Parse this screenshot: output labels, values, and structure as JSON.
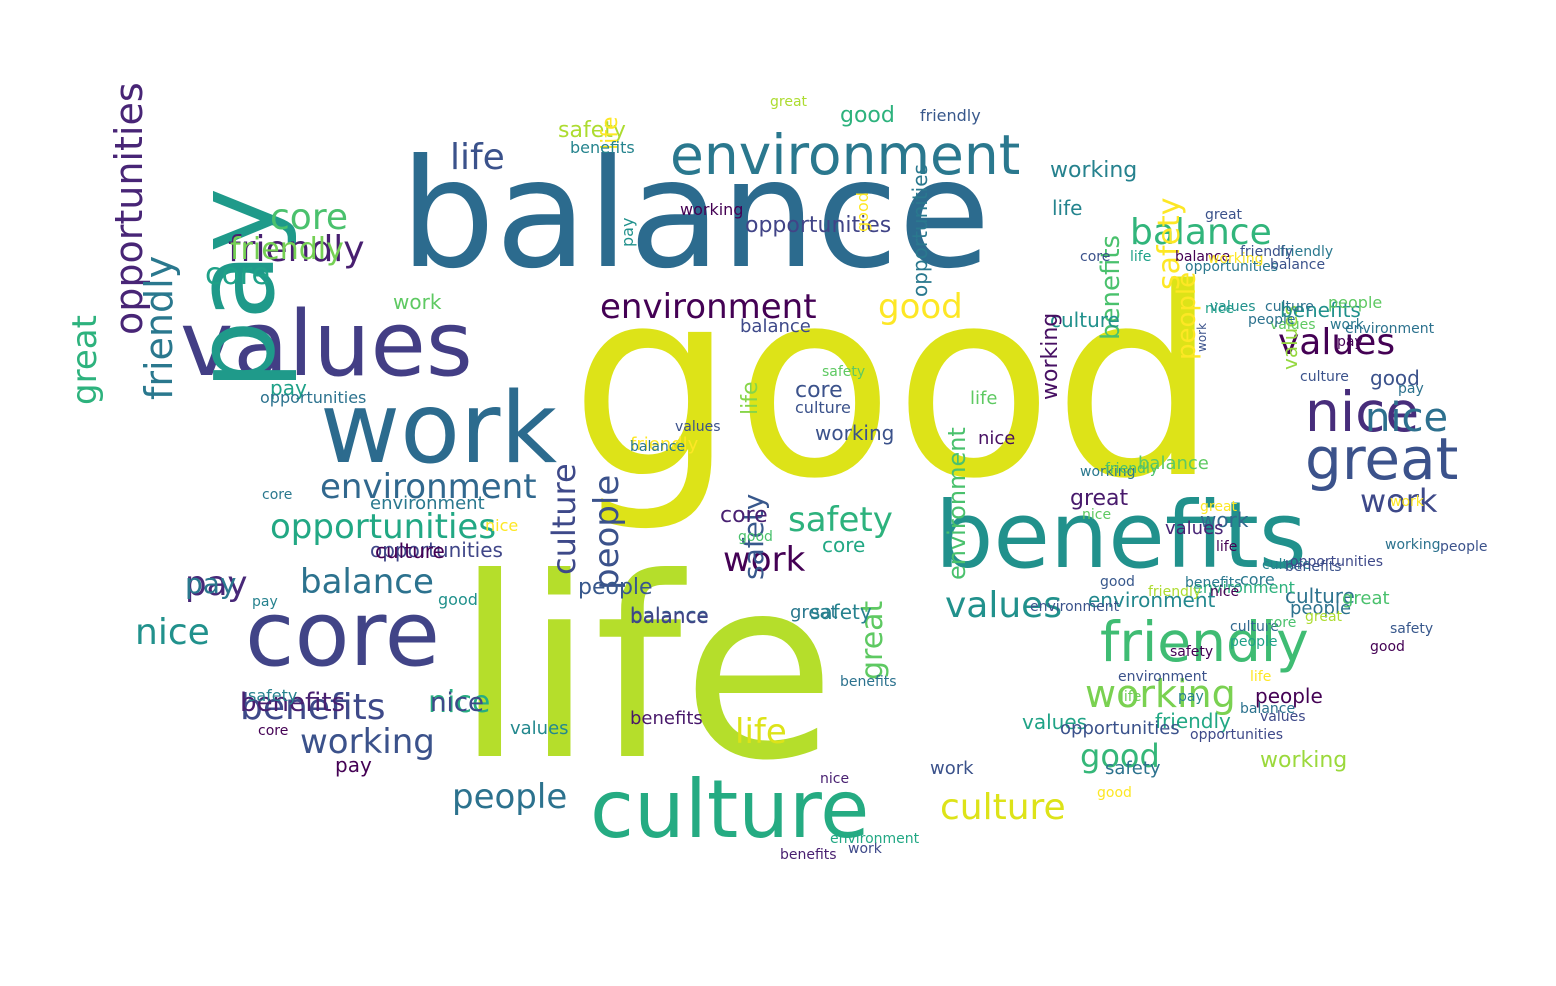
{
  "palette": [
    "#440154",
    "#3b528b",
    "#2c728e",
    "#21918c",
    "#28ae80",
    "#5ec962",
    "#addc30",
    "#dde318",
    "#fde725"
  ],
  "words": [
    {
      "text": "good",
      "weight": 1.0,
      "color": "#dde318"
    },
    {
      "text": "life",
      "weight": 0.78,
      "color": "#b5de2b"
    },
    {
      "text": "balance",
      "weight": 0.58,
      "color": "#2c6b8e"
    },
    {
      "text": "benefits",
      "weight": 0.34,
      "color": "#21918c"
    },
    {
      "text": "values",
      "weight": 0.3,
      "color": "#433e85"
    },
    {
      "text": "core",
      "weight": 0.29,
      "color": "#414487"
    },
    {
      "text": "pay",
      "weight": 0.3,
      "color": "#1f9a8a"
    },
    {
      "text": "work",
      "weight": 0.3,
      "color": "#2c6b8e"
    },
    {
      "text": "culture",
      "weight": 0.25,
      "color": "#25ab82"
    },
    {
      "text": "environment",
      "weight": 0.17,
      "color": "#2a788e"
    },
    {
      "text": "great",
      "weight": 0.17,
      "color": "#3b528b"
    },
    {
      "text": "nice",
      "weight": 0.16,
      "color": "#472d7b"
    },
    {
      "text": "friendly",
      "weight": 0.15,
      "color": "#3fbc73"
    },
    {
      "text": "opportunities",
      "weight": 0.12,
      "color": "#482576"
    },
    {
      "text": "working",
      "weight": 0.1,
      "color": "#7ad151"
    },
    {
      "text": "safety",
      "weight": 0.1,
      "color": "#2db27d"
    },
    {
      "text": "people",
      "weight": 0.1,
      "color": "#3b528b"
    },
    {
      "text": "life",
      "weight": 0.1,
      "color": "#3b528b"
    },
    {
      "text": "balance",
      "weight": 0.09,
      "color": "#31b57b"
    },
    {
      "text": "friendly",
      "weight": 0.08,
      "color": "#2a788e"
    },
    {
      "text": "values",
      "weight": 0.09,
      "color": "#440154"
    },
    {
      "text": "core",
      "weight": 0.08,
      "color": "#4ac16d"
    },
    {
      "text": "culture",
      "weight": 0.08,
      "color": "#dde318"
    },
    {
      "text": "benefits",
      "weight": 0.09,
      "color": "#3e4989"
    },
    {
      "text": "nice",
      "weight": 0.08,
      "color": "#21918c"
    },
    {
      "text": "environment",
      "weight": 0.07,
      "color": "#440154"
    },
    {
      "text": "opportunities",
      "weight": 0.07,
      "color": "#22a884"
    },
    {
      "text": "working",
      "weight": 0.08,
      "color": "#3b528b"
    },
    {
      "text": "good",
      "weight": 0.07,
      "color": "#fde725"
    },
    {
      "text": "work",
      "weight": 0.08,
      "color": "#440154"
    },
    {
      "text": "people",
      "weight": 0.07,
      "color": "#2c728e"
    },
    {
      "text": "life",
      "weight": 0.07,
      "color": "#dde318"
    },
    {
      "text": "balance",
      "weight": 0.07,
      "color": "#2c728e"
    },
    {
      "text": "safety",
      "weight": 0.06,
      "color": "#fde725"
    },
    {
      "text": "great",
      "weight": 0.06,
      "color": "#2db27d"
    },
    {
      "text": "culture",
      "weight": 0.06,
      "color": "#3e4989"
    },
    {
      "text": "friendly",
      "weight": 0.05,
      "color": "#481f70"
    },
    {
      "text": "values",
      "weight": 0.06,
      "color": "#21918c"
    },
    {
      "text": "pay",
      "weight": 0.06,
      "color": "#482878"
    },
    {
      "text": "core",
      "weight": 0.05,
      "color": "#1fa188"
    },
    {
      "text": "nice",
      "weight": 0.05,
      "color": "#27ad81"
    },
    {
      "text": "benefits",
      "weight": 0.05,
      "color": "#4ac16d"
    },
    {
      "text": "environment",
      "weight": 0.05,
      "color": "#31688e"
    },
    {
      "text": "good",
      "weight": 0.05,
      "color": "#35b779"
    },
    {
      "text": "working",
      "weight": 0.05,
      "color": "#26828e"
    },
    {
      "text": "safety",
      "weight": 0.05,
      "color": "#38588c"
    },
    {
      "text": "people",
      "weight": 0.05,
      "color": "#440154"
    },
    {
      "text": "opportunities",
      "weight": 0.05,
      "color": "#404688"
    },
    {
      "text": "great",
      "weight": 0.05,
      "color": "#5ec962"
    },
    {
      "text": "life",
      "weight": 0.05,
      "color": "#25848e"
    },
    {
      "text": "work",
      "weight": 0.04,
      "color": "#3e4989"
    },
    {
      "text": "pay",
      "weight": 0.04,
      "color": "#2a788e"
    },
    {
      "text": "balance",
      "weight": 0.04,
      "color": "#355f8d"
    },
    {
      "text": "values",
      "weight": 0.04,
      "color": "#20a386"
    },
    {
      "text": "culture",
      "weight": 0.04,
      "color": "#21918c"
    },
    {
      "text": "friendly",
      "weight": 0.04,
      "color": "#75d054"
    },
    {
      "text": "core",
      "weight": 0.04,
      "color": "#3b528b"
    },
    {
      "text": "nice",
      "weight": 0.04,
      "color": "#3e4989"
    },
    {
      "text": "benefits",
      "weight": 0.04,
      "color": "#481f70"
    },
    {
      "text": "environment",
      "weight": 0.04,
      "color": "#23888e"
    },
    {
      "text": "good",
      "weight": 0.04,
      "color": "#2db27d"
    },
    {
      "text": "working",
      "weight": 0.03,
      "color": "#471063"
    },
    {
      "text": "safety",
      "weight": 0.03,
      "color": "#addc30"
    },
    {
      "text": "people",
      "weight": 0.03,
      "color": "#38588c"
    },
    {
      "text": "opportunities",
      "weight": 0.03,
      "color": "#2a788e"
    },
    {
      "text": "great",
      "weight": 0.03,
      "color": "#481a6c"
    },
    {
      "text": "life",
      "weight": 0.03,
      "color": "#86d549"
    },
    {
      "text": "work",
      "weight": 0.03,
      "color": "#5ec962"
    },
    {
      "text": "pay",
      "weight": 0.03,
      "color": "#1fa188"
    },
    {
      "text": "balance",
      "weight": 0.03,
      "color": "#414487"
    },
    {
      "text": "values",
      "weight": 0.03,
      "color": "#95d840"
    },
    {
      "text": "culture",
      "weight": 0.03,
      "color": "#440154"
    },
    {
      "text": "friendly",
      "weight": 0.03,
      "color": "#22a884"
    },
    {
      "text": "core",
      "weight": 0.03,
      "color": "#482071"
    },
    {
      "text": "nice",
      "weight": 0.03,
      "color": "#2d708e"
    },
    {
      "text": "benefits",
      "weight": 0.03,
      "color": "#21918c"
    },
    {
      "text": "environment",
      "weight": 0.03,
      "color": "#4ac16d"
    },
    {
      "text": "good",
      "weight": 0.03,
      "color": "#3b528b"
    },
    {
      "text": "working",
      "weight": 0.02,
      "color": "#9bd93c"
    },
    {
      "text": "safety",
      "weight": 0.02,
      "color": "#2c728e"
    },
    {
      "text": "people",
      "weight": 0.02,
      "color": "#fde725"
    },
    {
      "text": "opportunities",
      "weight": 0.02,
      "color": "#414487"
    },
    {
      "text": "great",
      "weight": 0.02,
      "color": "#2a788e"
    },
    {
      "text": "life",
      "weight": 0.02,
      "color": "#fde725"
    },
    {
      "text": "work",
      "weight": 0.02,
      "color": "#31688e"
    },
    {
      "text": "pay",
      "weight": 0.02,
      "color": "#440154"
    },
    {
      "text": "balance",
      "weight": 0.02,
      "color": "#3e4989"
    },
    {
      "text": "values",
      "weight": 0.02,
      "color": "#23888e"
    },
    {
      "text": "culture",
      "weight": 0.02,
      "color": "#2c728e"
    },
    {
      "text": "friendly",
      "weight": 0.02,
      "color": "#38588c"
    },
    {
      "text": "core",
      "weight": 0.02,
      "color": "#22a884"
    },
    {
      "text": "nice",
      "weight": 0.02,
      "color": "#471063"
    },
    {
      "text": "benefits",
      "weight": 0.02,
      "color": "#48186a"
    },
    {
      "text": "environment",
      "weight": 0.02,
      "color": "#2a788e"
    },
    {
      "text": "good",
      "weight": 0.02,
      "color": "#fde725"
    },
    {
      "text": "working",
      "weight": 0.02,
      "color": "#3b528b"
    },
    {
      "text": "safety",
      "weight": 0.02,
      "color": "#26828e"
    },
    {
      "text": "people",
      "weight": 0.02,
      "color": "#2c728e"
    },
    {
      "text": "opportunities",
      "weight": 0.02,
      "color": "#3b528b"
    },
    {
      "text": "great",
      "weight": 0.02,
      "color": "#4ac16d"
    },
    {
      "text": "life",
      "weight": 0.02,
      "color": "#5ec962"
    },
    {
      "text": "work",
      "weight": 0.02,
      "color": "#3b528b"
    },
    {
      "text": "pay",
      "weight": 0.02,
      "color": "#21918c"
    },
    {
      "text": "balance",
      "weight": 0.02,
      "color": "#5ec962"
    },
    {
      "text": "values",
      "weight": 0.02,
      "color": "#482475"
    },
    {
      "text": "culture",
      "weight": 0.02,
      "color": "#3b528b"
    },
    {
      "text": "friendly",
      "weight": 0.02,
      "color": "#fde725"
    },
    {
      "text": "core",
      "weight": 0.02,
      "color": "#2a788e"
    },
    {
      "text": "nice",
      "weight": 0.02,
      "color": "#fde725"
    },
    {
      "text": "benefits",
      "weight": 0.02,
      "color": "#25848e"
    },
    {
      "text": "environment",
      "weight": 0.02,
      "color": "#2db27d"
    },
    {
      "text": "good",
      "weight": 0.02,
      "color": "#21918c"
    },
    {
      "text": "working",
      "weight": 0.01,
      "color": "#440154"
    },
    {
      "text": "safety",
      "weight": 0.01,
      "color": "#26828e"
    },
    {
      "text": "people",
      "weight": 0.01,
      "color": "#5ec962"
    },
    {
      "text": "opportunities",
      "weight": 0.01,
      "color": "#2c728e"
    },
    {
      "text": "great",
      "weight": 0.01,
      "color": "#addc30"
    },
    {
      "text": "life",
      "weight": 0.01,
      "color": "#6ece58"
    },
    {
      "text": "work",
      "weight": 0.01,
      "color": "#fde725"
    },
    {
      "text": "pay",
      "weight": 0.01,
      "color": "#26828e"
    },
    {
      "text": "balance",
      "weight": 0.01,
      "color": "#2a788e"
    },
    {
      "text": "values",
      "weight": 0.01,
      "color": "#3b528b"
    },
    {
      "text": "culture",
      "weight": 0.01,
      "color": "#31688e"
    },
    {
      "text": "friendly",
      "weight": 0.01,
      "color": "#addc30"
    },
    {
      "text": "core",
      "weight": 0.01,
      "color": "#440154"
    },
    {
      "text": "nice",
      "weight": 0.01,
      "color": "#1fa188"
    },
    {
      "text": "benefits",
      "weight": 0.01,
      "color": "#2c728e"
    },
    {
      "text": "environment",
      "weight": 0.01,
      "color": "#3b528b"
    },
    {
      "text": "good",
      "weight": 0.01,
      "color": "#38588c"
    },
    {
      "text": "working",
      "weight": 0.01,
      "color": "#2a788e"
    },
    {
      "text": "safety",
      "weight": 0.01,
      "color": "#440154"
    },
    {
      "text": "people",
      "weight": 0.01,
      "color": "#1fa188"
    },
    {
      "text": "opportunities",
      "weight": 0.01,
      "color": "#3e4989"
    },
    {
      "text": "great",
      "weight": 0.01,
      "color": "#fde725"
    },
    {
      "text": "life",
      "weight": 0.01,
      "color": "#440154"
    },
    {
      "text": "work",
      "weight": 0.01,
      "color": "#3e4989"
    },
    {
      "text": "pay",
      "weight": 0.01,
      "color": "#26828e"
    },
    {
      "text": "balance",
      "weight": 0.01,
      "color": "#440154"
    },
    {
      "text": "values",
      "weight": 0.01,
      "color": "#5ec962"
    },
    {
      "text": "culture",
      "weight": 0.01,
      "color": "#26828e"
    },
    {
      "text": "friendly",
      "weight": 0.01,
      "color": "#2a788e"
    },
    {
      "text": "core",
      "weight": 0.01,
      "color": "#2a788e"
    },
    {
      "text": "nice",
      "weight": 0.01,
      "color": "#482071"
    },
    {
      "text": "benefits",
      "weight": 0.01,
      "color": "#481f70"
    },
    {
      "text": "environment",
      "weight": 0.01,
      "color": "#22a884"
    },
    {
      "text": "good",
      "weight": 0.01,
      "color": "#4ac16d"
    },
    {
      "text": "working",
      "weight": 0.01,
      "color": "#2c728e"
    },
    {
      "text": "safety",
      "weight": 0.01,
      "color": "#38588c"
    },
    {
      "text": "people",
      "weight": 0.01,
      "color": "#3b528b"
    },
    {
      "text": "opportunities",
      "weight": 0.01,
      "color": "#2a788e"
    },
    {
      "text": "great",
      "weight": 0.01,
      "color": "#3b528b"
    },
    {
      "text": "life",
      "weight": 0.01,
      "color": "#1fa188"
    },
    {
      "text": "work",
      "weight": 0.01,
      "color": "#3b528b"
    },
    {
      "text": "pay",
      "weight": 0.01,
      "color": "#2c728e"
    },
    {
      "text": "balance",
      "weight": 0.01,
      "color": "#3b528b"
    },
    {
      "text": "values",
      "weight": 0.01,
      "color": "#21918c"
    },
    {
      "text": "culture",
      "weight": 0.01,
      "color": "#3b528b"
    },
    {
      "text": "friendly",
      "weight": 0.01,
      "color": "#4ac16d"
    },
    {
      "text": "core",
      "weight": 0.01,
      "color": "#3b528b"
    },
    {
      "text": "nice",
      "weight": 0.01,
      "color": "#5ec962"
    },
    {
      "text": "benefits",
      "weight": 0.01,
      "color": "#3b528b"
    },
    {
      "text": "environment",
      "weight": 0.01,
      "color": "#3b528b"
    },
    {
      "text": "good",
      "weight": 0.01,
      "color": "#fde725"
    },
    {
      "text": "working",
      "weight": 0.01,
      "color": "#fde725"
    },
    {
      "text": "safety",
      "weight": 0.01,
      "color": "#5ec962"
    },
    {
      "text": "people",
      "weight": 0.01,
      "color": "#2c728e"
    },
    {
      "text": "opportunities",
      "weight": 0.01,
      "color": "#3e4989"
    },
    {
      "text": "great",
      "weight": 0.01,
      "color": "#addc30"
    },
    {
      "text": "life",
      "weight": 0.01,
      "color": "#fde725"
    },
    {
      "text": "work",
      "weight": 0.01,
      "color": "#2a788e"
    },
    {
      "text": "pay",
      "weight": 0.01,
      "color": "#440154"
    },
    {
      "text": "balance",
      "weight": 0.01,
      "color": "#2c728e"
    },
    {
      "text": "values",
      "weight": 0.01,
      "color": "#3e4989"
    },
    {
      "text": "culture",
      "weight": 0.01,
      "color": "#2c728e"
    },
    {
      "text": "friendly",
      "weight": 0.01,
      "color": "#3b528b"
    },
    {
      "text": "core",
      "weight": 0.01,
      "color": "#4ac16d"
    },
    {
      "text": "nice",
      "weight": 0.01,
      "color": "#440154"
    },
    {
      "text": "benefits",
      "weight": 0.01,
      "color": "#2a788e"
    },
    {
      "text": "environment",
      "weight": 0.01,
      "color": "#2c728e"
    },
    {
      "text": "good",
      "weight": 0.01,
      "color": "#440154"
    }
  ]
}
